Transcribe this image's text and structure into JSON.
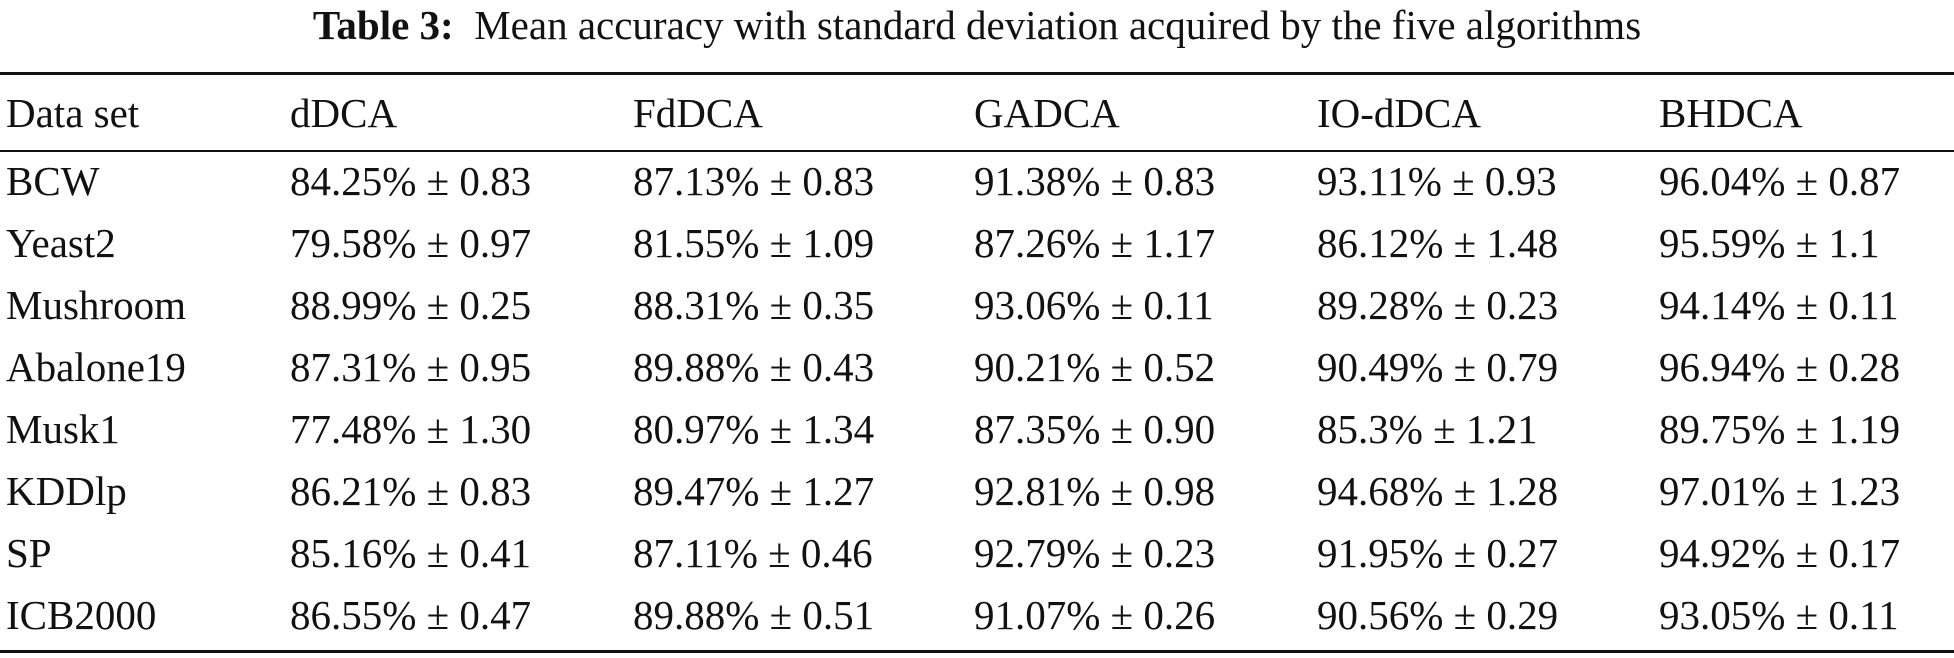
{
  "caption": {
    "label": "Table 3:",
    "text": "Mean accuracy with standard deviation acquired by the five algorithms"
  },
  "table": {
    "headers": [
      "Data set",
      "dDCA",
      "FdDCA",
      "GADCA",
      "IO-dDCA",
      "BHDCA"
    ],
    "rows": [
      {
        "dataset": "BCW",
        "dDCA": "84.25% ± 0.83",
        "FdDCA": "87.13% ± 0.83",
        "GADCA": "91.38% ± 0.83",
        "IO-dDCA": "93.11% ± 0.93",
        "BHDCA": "96.04% ± 0.87"
      },
      {
        "dataset": "Yeast2",
        "dDCA": "79.58% ± 0.97",
        "FdDCA": "81.55% ± 1.09",
        "GADCA": "87.26% ± 1.17",
        "IO-dDCA": "86.12% ± 1.48",
        "BHDCA": "95.59% ± 1.1"
      },
      {
        "dataset": "Mushroom",
        "dDCA": "88.99% ± 0.25",
        "FdDCA": "88.31% ± 0.35",
        "GADCA": "93.06% ± 0.11",
        "IO-dDCA": "89.28% ± 0.23",
        "BHDCA": "94.14% ± 0.11"
      },
      {
        "dataset": "Abalone19",
        "dDCA": "87.31% ± 0.95",
        "FdDCA": "89.88% ± 0.43",
        "GADCA": "90.21% ± 0.52",
        "IO-dDCA": "90.49% ± 0.79",
        "BHDCA": "96.94% ± 0.28"
      },
      {
        "dataset": "Musk1",
        "dDCA": "77.48% ± 1.30",
        "FdDCA": "80.97% ± 1.34",
        "GADCA": "87.35% ± 0.90",
        "IO-dDCA": "85.3% ± 1.21",
        "BHDCA": "89.75% ± 1.19"
      },
      {
        "dataset": "KDDlp",
        "dDCA": "86.21% ± 0.83",
        "FdDCA": "89.47% ± 1.27",
        "GADCA": "92.81% ± 0.98",
        "IO-dDCA": "94.68% ± 1.28",
        "BHDCA": "97.01% ± 1.23"
      },
      {
        "dataset": "SP",
        "dDCA": "85.16% ± 0.41",
        "FdDCA": "87.11% ± 0.46",
        "GADCA": "92.79% ± 0.23",
        "IO-dDCA": "91.95% ± 0.27",
        "BHDCA": "94.92% ± 0.17"
      },
      {
        "dataset": "ICB2000",
        "dDCA": "86.55% ± 0.47",
        "FdDCA": "89.88% ± 0.51",
        "GADCA": "91.07% ± 0.26",
        "IO-dDCA": "90.56% ± 0.29",
        "BHDCA": "93.05% ± 0.11"
      }
    ]
  }
}
